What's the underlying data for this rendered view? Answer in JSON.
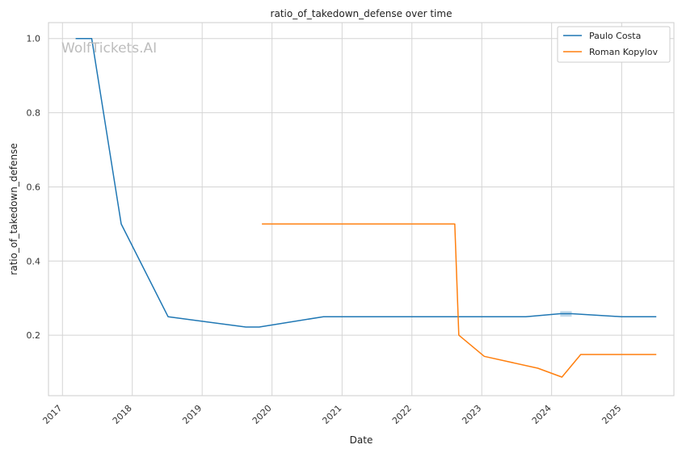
{
  "chart_data": {
    "type": "line",
    "title": "ratio_of_takedown_defense over time",
    "xlabel": "Date",
    "ylabel": "ratio_of_takedown_defense",
    "watermark": "WolfTickets.AI",
    "x_ticks": [
      "2017",
      "2018",
      "2019",
      "2020",
      "2021",
      "2022",
      "2023",
      "2024",
      "2025"
    ],
    "y_ticks": [
      "0.2",
      "0.4",
      "0.6",
      "0.8",
      "1.0"
    ],
    "xlim": [
      "2016-10-20",
      "2025-10-01"
    ],
    "ylim": [
      0.037,
      1.043
    ],
    "grid": true,
    "legend_position": "top-right",
    "series": [
      {
        "name": "Paulo Costa",
        "color": "#1f77b4",
        "points": [
          [
            "2017-03-11",
            1.0
          ],
          [
            "2017-06-03",
            1.0
          ],
          [
            "2017-11-04",
            0.5
          ],
          [
            "2018-07-07",
            0.25
          ],
          [
            "2019-08-17",
            0.222
          ],
          [
            "2019-10-26",
            0.222
          ],
          [
            "2020-09-26",
            0.25
          ],
          [
            "2021-06-01",
            0.25
          ],
          [
            "2023-08-19",
            0.25
          ],
          [
            "2024-02-15",
            0.258
          ],
          [
            "2024-04-15",
            0.258
          ],
          [
            "2025-01-01",
            0.25
          ],
          [
            "2025-07-01",
            0.25
          ]
        ],
        "band": {
          "from": "2024-02-15",
          "to": "2024-04-15",
          "low": 0.25,
          "high": 0.265
        }
      },
      {
        "name": "Roman Kopylov",
        "color": "#ff7f0e",
        "points": [
          [
            "2019-11-09",
            0.5
          ],
          [
            "2022-08-13",
            0.5
          ],
          [
            "2022-09-03",
            0.2
          ],
          [
            "2023-01-14",
            0.143
          ],
          [
            "2023-10-21",
            0.111
          ],
          [
            "2024-02-24",
            0.087
          ],
          [
            "2024-06-01",
            0.148
          ],
          [
            "2025-07-01",
            0.148
          ]
        ]
      }
    ]
  }
}
